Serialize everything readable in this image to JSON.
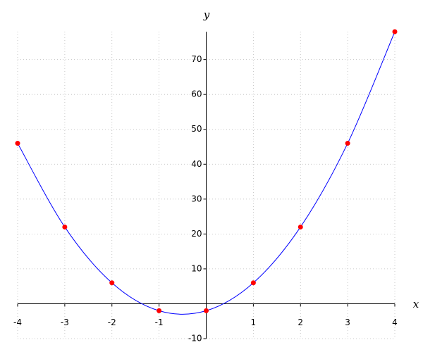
{
  "chart_data": {
    "type": "line",
    "x_label": "x",
    "y_label": "y",
    "x": [
      -4,
      -3,
      -2,
      -1,
      0,
      1,
      2,
      3,
      4
    ],
    "series": [
      {
        "color": "#0000ff",
        "marker_color": "#ff0000",
        "values": [
          46,
          22,
          6,
          -2,
          -2,
          6,
          22,
          46,
          78
        ]
      }
    ],
    "xlim": [
      -4,
      4
    ],
    "ylim": [
      -10,
      78
    ],
    "xticks": [
      -4,
      -3,
      -2,
      -1,
      1,
      2,
      3,
      4
    ],
    "yticks": [
      -10,
      10,
      20,
      30,
      40,
      50,
      60,
      70
    ],
    "grid": true
  }
}
